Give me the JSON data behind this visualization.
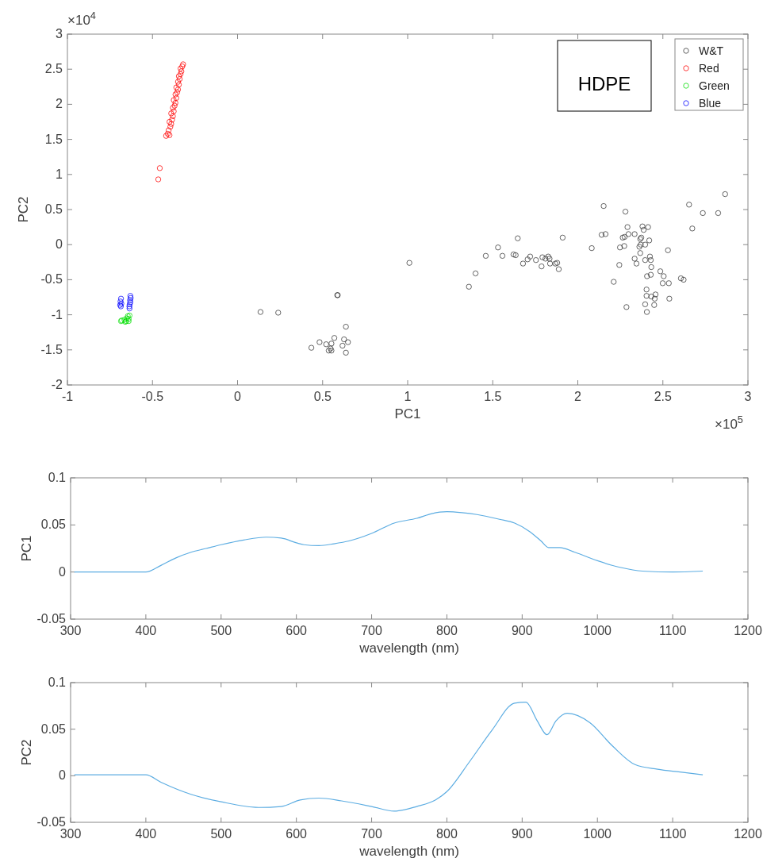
{
  "chart_data": [
    {
      "type": "scatter",
      "xlabel": "PC1",
      "ylabel": "PC2",
      "xlim": [
        -1,
        3
      ],
      "xticks": [
        -1,
        -0.5,
        0,
        0.5,
        1,
        1.5,
        2,
        2.5,
        3
      ],
      "ylim": [
        -2,
        3
      ],
      "yticks": [
        -2,
        -1.5,
        -1,
        -0.5,
        0,
        0.5,
        1,
        1.5,
        2,
        2.5,
        3
      ],
      "grid": false,
      "legend": "top right",
      "marker": "circle",
      "annotations": [
        "×10$^{4}$",
        "×10$^{5}$",
        "HDPE"
      ],
      "series": [
        {
          "name": "W&T",
          "color": "#333333",
          "x": [
            0.135,
            0.239,
            0.586,
            0.589,
            1.01,
            0.637,
            0.569,
            0.482,
            0.434,
            0.521,
            0.552,
            0.547,
            0.536,
            0.552,
            0.626,
            0.649,
            0.617,
            0.637,
            1.36,
            1.399,
            1.459,
            1.531,
            1.557,
            1.647,
            1.622,
            1.635,
            1.678,
            1.705,
            1.72,
            1.754,
            1.787,
            1.792,
            1.81,
            1.826,
            1.834,
            1.837,
            1.868,
            1.879,
            1.888,
            1.911,
            2.082,
            2.14,
            2.163,
            2.152,
            2.28,
            2.292,
            2.264,
            2.275,
            2.248,
            2.273,
            2.298,
            2.334,
            2.244,
            2.211,
            2.334,
            2.345,
            2.367,
            2.362,
            2.37,
            2.367,
            2.373,
            2.38,
            2.387,
            2.413,
            2.42,
            2.396,
            2.396,
            2.424,
            2.429,
            2.432,
            2.407,
            2.429,
            2.404,
            2.404,
            2.432,
            2.457,
            2.452,
            2.396,
            2.449,
            2.406,
            2.286,
            2.538,
            2.485,
            2.505,
            2.499,
            2.535,
            2.53,
            2.606,
            2.622,
            2.654,
            2.673,
            2.735,
            2.825,
            2.866
          ],
          "values": [
            -0.96,
            -0.97,
            -0.72,
            -0.72,
            -0.26,
            -1.17,
            -1.33,
            -1.39,
            -1.47,
            -1.42,
            -1.41,
            -1.48,
            -1.51,
            -1.51,
            -1.35,
            -1.39,
            -1.44,
            -1.54,
            -0.6,
            -0.41,
            -0.16,
            -0.04,
            -0.16,
            0.09,
            -0.14,
            -0.15,
            -0.27,
            -0.21,
            -0.17,
            -0.22,
            -0.31,
            -0.18,
            -0.2,
            -0.17,
            -0.2,
            -0.27,
            -0.27,
            -0.26,
            -0.35,
            0.1,
            -0.05,
            0.14,
            0.15,
            0.55,
            0.47,
            0.25,
            0.1,
            0.11,
            -0.04,
            -0.02,
            0.15,
            0.15,
            -0.29,
            -0.53,
            -0.2,
            -0.27,
            -0.12,
            -0.03,
            0,
            0.08,
            0.1,
            0.26,
            0.21,
            0.25,
            0.06,
            0,
            -0.22,
            -0.17,
            -0.22,
            -0.32,
            -0.45,
            -0.43,
            -0.64,
            -0.73,
            -0.74,
            -0.71,
            -0.77,
            -0.85,
            -0.86,
            -0.96,
            -0.89,
            -0.77,
            -0.38,
            -0.45,
            -0.55,
            -0.55,
            -0.08,
            -0.48,
            -0.5,
            0.57,
            0.23,
            0.45,
            0.45,
            0.72
          ]
        },
        {
          "name": "Red",
          "color": "#ff0000",
          "x": [
            -0.42,
            -0.41,
            -0.4,
            -0.405,
            -0.395,
            -0.39,
            -0.4,
            -0.385,
            -0.38,
            -0.39,
            -0.375,
            -0.38,
            -0.37,
            -0.365,
            -0.375,
            -0.36,
            -0.365,
            -0.355,
            -0.35,
            -0.36,
            -0.345,
            -0.35,
            -0.34,
            -0.345,
            -0.335,
            -0.33,
            -0.335,
            -0.325,
            -0.32,
            -0.457,
            -0.466
          ],
          "values": [
            1.55,
            1.58,
            1.56,
            1.63,
            1.68,
            1.72,
            1.75,
            1.78,
            1.83,
            1.87,
            1.9,
            1.95,
            1.98,
            2.02,
            2.06,
            2.09,
            2.14,
            2.17,
            2.21,
            2.24,
            2.28,
            2.32,
            2.36,
            2.4,
            2.43,
            2.47,
            2.51,
            2.54,
            2.57,
            1.09,
            0.93
          ]
        },
        {
          "name": "Green",
          "color": "#00dd00",
          "x": [
            -0.685,
            -0.68,
            -0.665,
            -0.655,
            -0.65,
            -0.645,
            -0.64,
            -0.635,
            -0.66,
            -0.64
          ],
          "values": [
            -1.09,
            -1.08,
            -1.07,
            -1.09,
            -1.05,
            -1.02,
            -1.06,
            -1.01,
            -1.1,
            -1.09
          ]
        },
        {
          "name": "Blue",
          "color": "#0000ff",
          "x": [
            -0.685,
            -0.688,
            -0.683,
            -0.69,
            -0.686,
            -0.63,
            -0.628,
            -0.632,
            -0.63,
            -0.634,
            -0.636,
            -0.635
          ],
          "values": [
            -0.77,
            -0.81,
            -0.84,
            -0.86,
            -0.88,
            -0.73,
            -0.76,
            -0.79,
            -0.82,
            -0.85,
            -0.88,
            -0.91
          ]
        }
      ]
    },
    {
      "type": "line",
      "xlabel": "wavelength (nm)",
      "ylabel": "PC1",
      "xlim": [
        300,
        1200
      ],
      "xticks": [
        300,
        400,
        500,
        600,
        700,
        800,
        900,
        1000,
        1100,
        1200
      ],
      "ylim": [
        -0.05,
        0.1
      ],
      "yticks": [
        -0.05,
        0,
        0.05,
        0.1
      ],
      "grid": false,
      "legend": false,
      "line_style": "solid",
      "series": [
        {
          "color": "#5dade2",
          "x": [
            305,
            350,
            400,
            420,
            440,
            460,
            480,
            500,
            530,
            560,
            580,
            600,
            610,
            630,
            650,
            670,
            700,
            730,
            760,
            780,
            800,
            820,
            840,
            870,
            890,
            910,
            925,
            935,
            950,
            970,
            1000,
            1030,
            1060,
            1100,
            1140
          ],
          "values": [
            0,
            0,
            0,
            0.007,
            0.015,
            0.021,
            0.025,
            0.029,
            0.034,
            0.037,
            0.036,
            0.031,
            0.029,
            0.028,
            0.03,
            0.033,
            0.041,
            0.052,
            0.057,
            0.062,
            0.064,
            0.063,
            0.061,
            0.056,
            0.052,
            0.043,
            0.033,
            0.026,
            0.026,
            0.021,
            0.012,
            0.005,
            0.001,
            0,
            0.001
          ]
        }
      ]
    },
    {
      "type": "line",
      "xlabel": "wavelength (nm)",
      "ylabel": "PC2",
      "xlim": [
        300,
        1200
      ],
      "xticks": [
        300,
        400,
        500,
        600,
        700,
        800,
        900,
        1000,
        1100,
        1200
      ],
      "ylim": [
        -0.05,
        0.1
      ],
      "yticks": [
        -0.05,
        0,
        0.05,
        0.1
      ],
      "grid": false,
      "legend": false,
      "line_style": "solid",
      "series": [
        {
          "color": "#5dade2",
          "x": [
            305,
            400,
            420,
            460,
            500,
            550,
            580,
            605,
            630,
            660,
            700,
            730,
            760,
            785,
            800,
            830,
            860,
            890,
            905,
            920,
            933,
            945,
            960,
            990,
            1020,
            1050,
            1080,
            1110,
            1140
          ],
          "values": [
            0.001,
            0.001,
            -0.007,
            -0.02,
            -0.028,
            -0.034,
            -0.033,
            -0.026,
            -0.024,
            -0.027,
            -0.033,
            -0.038,
            -0.033,
            -0.026,
            -0.017,
            0.015,
            0.049,
            0.078,
            0.079,
            0.059,
            0.044,
            0.059,
            0.067,
            0.057,
            0.032,
            0.012,
            0.007,
            0.004,
            0.001
          ]
        }
      ]
    }
  ]
}
